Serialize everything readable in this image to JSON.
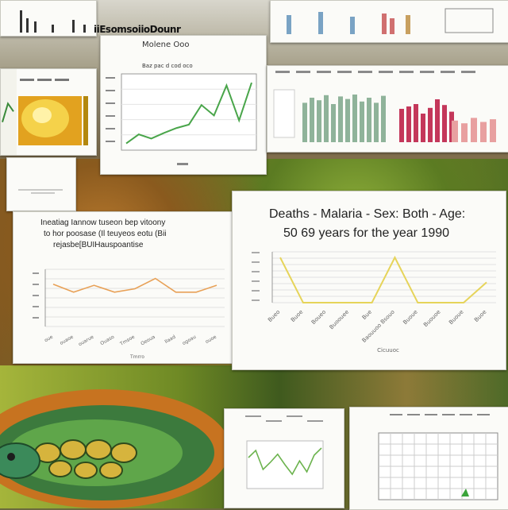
{
  "banner": {
    "text": "iiEsomsoiioDounr"
  },
  "top_center_chart": {
    "subtitle": "Molene Ooo",
    "caption": "Baz pac d cod oco",
    "chart_data": {
      "type": "line",
      "x": [
        1,
        2,
        3,
        4,
        5,
        6,
        7,
        8,
        9,
        10,
        11
      ],
      "values": [
        5,
        18,
        12,
        20,
        27,
        32,
        60,
        45,
        88,
        38,
        92
      ],
      "ylim": [
        0,
        100
      ]
    }
  },
  "left_card": {
    "chart_data": {
      "type": "line",
      "values": [
        20,
        55,
        40
      ]
    }
  },
  "heatmap_card": {
    "colors": [
      "#f5d24a",
      "#e2a21f",
      "#b3880f",
      "#fff2a8"
    ]
  },
  "right_top_bar": {
    "chart_data": {
      "type": "bar",
      "series": [
        {
          "values": [
            62,
            70,
            66,
            74,
            60,
            72,
            68,
            75,
            64,
            70,
            62,
            73
          ],
          "color": "#8fb39a"
        },
        {
          "values": [
            70,
            75,
            80,
            60,
            72,
            90,
            78,
            64
          ],
          "color": "#c4375a"
        }
      ]
    }
  },
  "left_mid_chart": {
    "title_lines": [
      "Ineatiag Iannow tuseon bep vitoony",
      "to hor poosase (Il teuyeos eotu (Bii",
      "rejasbe[BUIHauspoantise"
    ],
    "xlabel": "Tmrro",
    "chart_data": {
      "type": "line",
      "categories": [
        "oue",
        "ouaoe",
        "ouarue",
        "Ouaso",
        "Tmsoe",
        "Oeoua",
        "Ilaad",
        "ogoau",
        "ouoe"
      ],
      "values": [
        37,
        30,
        36,
        30,
        33,
        42,
        30,
        30,
        36
      ],
      "ylim": [
        0,
        50
      ],
      "color": "#e8a157"
    }
  },
  "main_chart": {
    "title_line1": "Deaths - Malaria - Sex: Both - Age:",
    "title_line2": "50 69 years for the year 1990",
    "xlabel": "Cicuuoc",
    "chart_data": {
      "type": "line",
      "categories": [
        "Bueo",
        "Buoe",
        "Boueo",
        "Buoouee",
        "Bue",
        "Baouuoo Bsouo",
        "Buoue",
        "Buouoe",
        "Buoue",
        "Buoe"
      ],
      "values": [
        40,
        0,
        0,
        0,
        0,
        40,
        0,
        0,
        0,
        18
      ],
      "ylim": [
        0,
        45
      ],
      "color": "#e6d45a"
    }
  },
  "bottom_left_card": {
    "chart_data": {
      "type": "line",
      "values": [
        55,
        70,
        30,
        45,
        62,
        40,
        20,
        48,
        25,
        60,
        75
      ]
    }
  },
  "bottom_right_card": {
    "chart_data": {
      "type": "table",
      "rows": 6,
      "cols": 10
    }
  }
}
